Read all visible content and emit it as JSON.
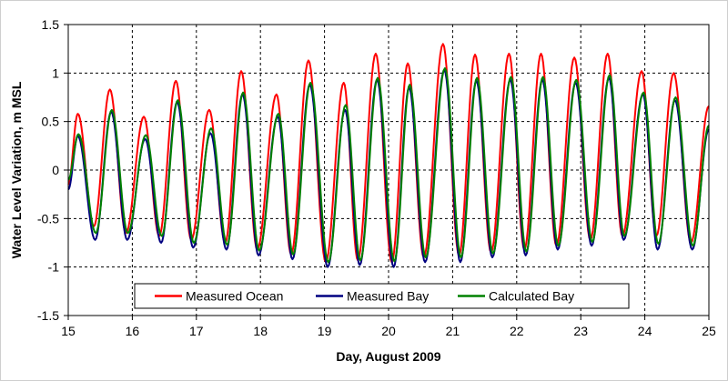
{
  "chart_data": {
    "type": "line",
    "xlabel": "Day, August 2009",
    "ylabel": "Water Level Variation, m MSL",
    "xlim": [
      15,
      25
    ],
    "ylim": [
      -1.5,
      1.5
    ],
    "xticks": [
      "15",
      "16",
      "17",
      "18",
      "19",
      "20",
      "21",
      "22",
      "23",
      "24",
      "25"
    ],
    "yticks": [
      "1.5",
      "1",
      "0.5",
      "0",
      "-0.5",
      "-1",
      "-1.5"
    ],
    "grid": true,
    "legend_position": "bottom-center",
    "series": [
      {
        "name": "Measured Ocean",
        "color": "#ff0000",
        "points": [
          [
            15.0,
            -0.15
          ],
          [
            15.15,
            0.58
          ],
          [
            15.4,
            -0.58
          ],
          [
            15.65,
            0.83
          ],
          [
            15.9,
            -0.65
          ],
          [
            16.18,
            0.55
          ],
          [
            16.42,
            -0.68
          ],
          [
            16.68,
            0.92
          ],
          [
            16.92,
            -0.72
          ],
          [
            17.2,
            0.62
          ],
          [
            17.45,
            -0.75
          ],
          [
            17.7,
            1.02
          ],
          [
            17.95,
            -0.82
          ],
          [
            18.25,
            0.78
          ],
          [
            18.48,
            -0.87
          ],
          [
            18.75,
            1.13
          ],
          [
            19.02,
            -0.95
          ],
          [
            19.3,
            0.9
          ],
          [
            19.52,
            -0.93
          ],
          [
            19.8,
            1.2
          ],
          [
            20.05,
            -0.95
          ],
          [
            20.3,
            1.1
          ],
          [
            20.55,
            -0.9
          ],
          [
            20.85,
            1.3
          ],
          [
            21.1,
            -0.88
          ],
          [
            21.35,
            1.19
          ],
          [
            21.6,
            -0.85
          ],
          [
            21.88,
            1.2
          ],
          [
            22.12,
            -0.82
          ],
          [
            22.38,
            1.2
          ],
          [
            22.62,
            -0.78
          ],
          [
            22.9,
            1.16
          ],
          [
            23.15,
            -0.72
          ],
          [
            23.42,
            1.2
          ],
          [
            23.65,
            -0.68
          ],
          [
            23.95,
            1.02
          ],
          [
            24.18,
            -0.68
          ],
          [
            24.45,
            1.0
          ],
          [
            24.72,
            -0.75
          ],
          [
            25.0,
            0.66
          ]
        ]
      },
      {
        "name": "Measured Bay",
        "color": "#000080",
        "points": [
          [
            15.0,
            -0.2
          ],
          [
            15.15,
            0.35
          ],
          [
            15.42,
            -0.72
          ],
          [
            15.67,
            0.6
          ],
          [
            15.92,
            -0.72
          ],
          [
            16.2,
            0.32
          ],
          [
            16.45,
            -0.75
          ],
          [
            16.7,
            0.7
          ],
          [
            16.95,
            -0.8
          ],
          [
            17.22,
            0.38
          ],
          [
            17.47,
            -0.82
          ],
          [
            17.72,
            0.78
          ],
          [
            17.97,
            -0.88
          ],
          [
            18.27,
            0.55
          ],
          [
            18.5,
            -0.92
          ],
          [
            18.77,
            0.88
          ],
          [
            19.05,
            -1.0
          ],
          [
            19.32,
            0.62
          ],
          [
            19.55,
            -0.98
          ],
          [
            19.82,
            0.93
          ],
          [
            20.08,
            -1.0
          ],
          [
            20.32,
            0.85
          ],
          [
            20.57,
            -0.95
          ],
          [
            20.87,
            1.03
          ],
          [
            21.12,
            -0.95
          ],
          [
            21.37,
            0.92
          ],
          [
            21.62,
            -0.9
          ],
          [
            21.9,
            0.93
          ],
          [
            22.14,
            -0.88
          ],
          [
            22.4,
            0.93
          ],
          [
            22.64,
            -0.82
          ],
          [
            22.92,
            0.9
          ],
          [
            23.17,
            -0.78
          ],
          [
            23.44,
            0.95
          ],
          [
            23.67,
            -0.72
          ],
          [
            23.97,
            0.78
          ],
          [
            24.2,
            -0.82
          ],
          [
            24.47,
            0.72
          ],
          [
            24.74,
            -0.82
          ],
          [
            25.0,
            0.42
          ]
        ]
      },
      {
        "name": "Calculated Bay",
        "color": "#008000",
        "points": [
          [
            15.0,
            -0.1
          ],
          [
            15.16,
            0.37
          ],
          [
            15.43,
            -0.65
          ],
          [
            15.68,
            0.62
          ],
          [
            15.93,
            -0.65
          ],
          [
            16.21,
            0.36
          ],
          [
            16.46,
            -0.68
          ],
          [
            16.71,
            0.72
          ],
          [
            16.96,
            -0.75
          ],
          [
            17.23,
            0.43
          ],
          [
            17.48,
            -0.77
          ],
          [
            17.73,
            0.8
          ],
          [
            17.98,
            -0.83
          ],
          [
            18.28,
            0.58
          ],
          [
            18.51,
            -0.87
          ],
          [
            18.78,
            0.9
          ],
          [
            19.06,
            -0.95
          ],
          [
            19.33,
            0.67
          ],
          [
            19.56,
            -0.93
          ],
          [
            19.83,
            0.95
          ],
          [
            20.09,
            -0.94
          ],
          [
            20.33,
            0.88
          ],
          [
            20.58,
            -0.9
          ],
          [
            20.88,
            1.05
          ],
          [
            21.13,
            -0.9
          ],
          [
            21.38,
            0.95
          ],
          [
            21.63,
            -0.86
          ],
          [
            21.91,
            0.96
          ],
          [
            22.15,
            -0.84
          ],
          [
            22.41,
            0.96
          ],
          [
            22.65,
            -0.78
          ],
          [
            22.93,
            0.93
          ],
          [
            23.18,
            -0.74
          ],
          [
            23.45,
            0.98
          ],
          [
            23.68,
            -0.68
          ],
          [
            23.98,
            0.8
          ],
          [
            24.21,
            -0.76
          ],
          [
            24.48,
            0.75
          ],
          [
            24.75,
            -0.78
          ],
          [
            25.0,
            0.46
          ]
        ]
      }
    ]
  }
}
